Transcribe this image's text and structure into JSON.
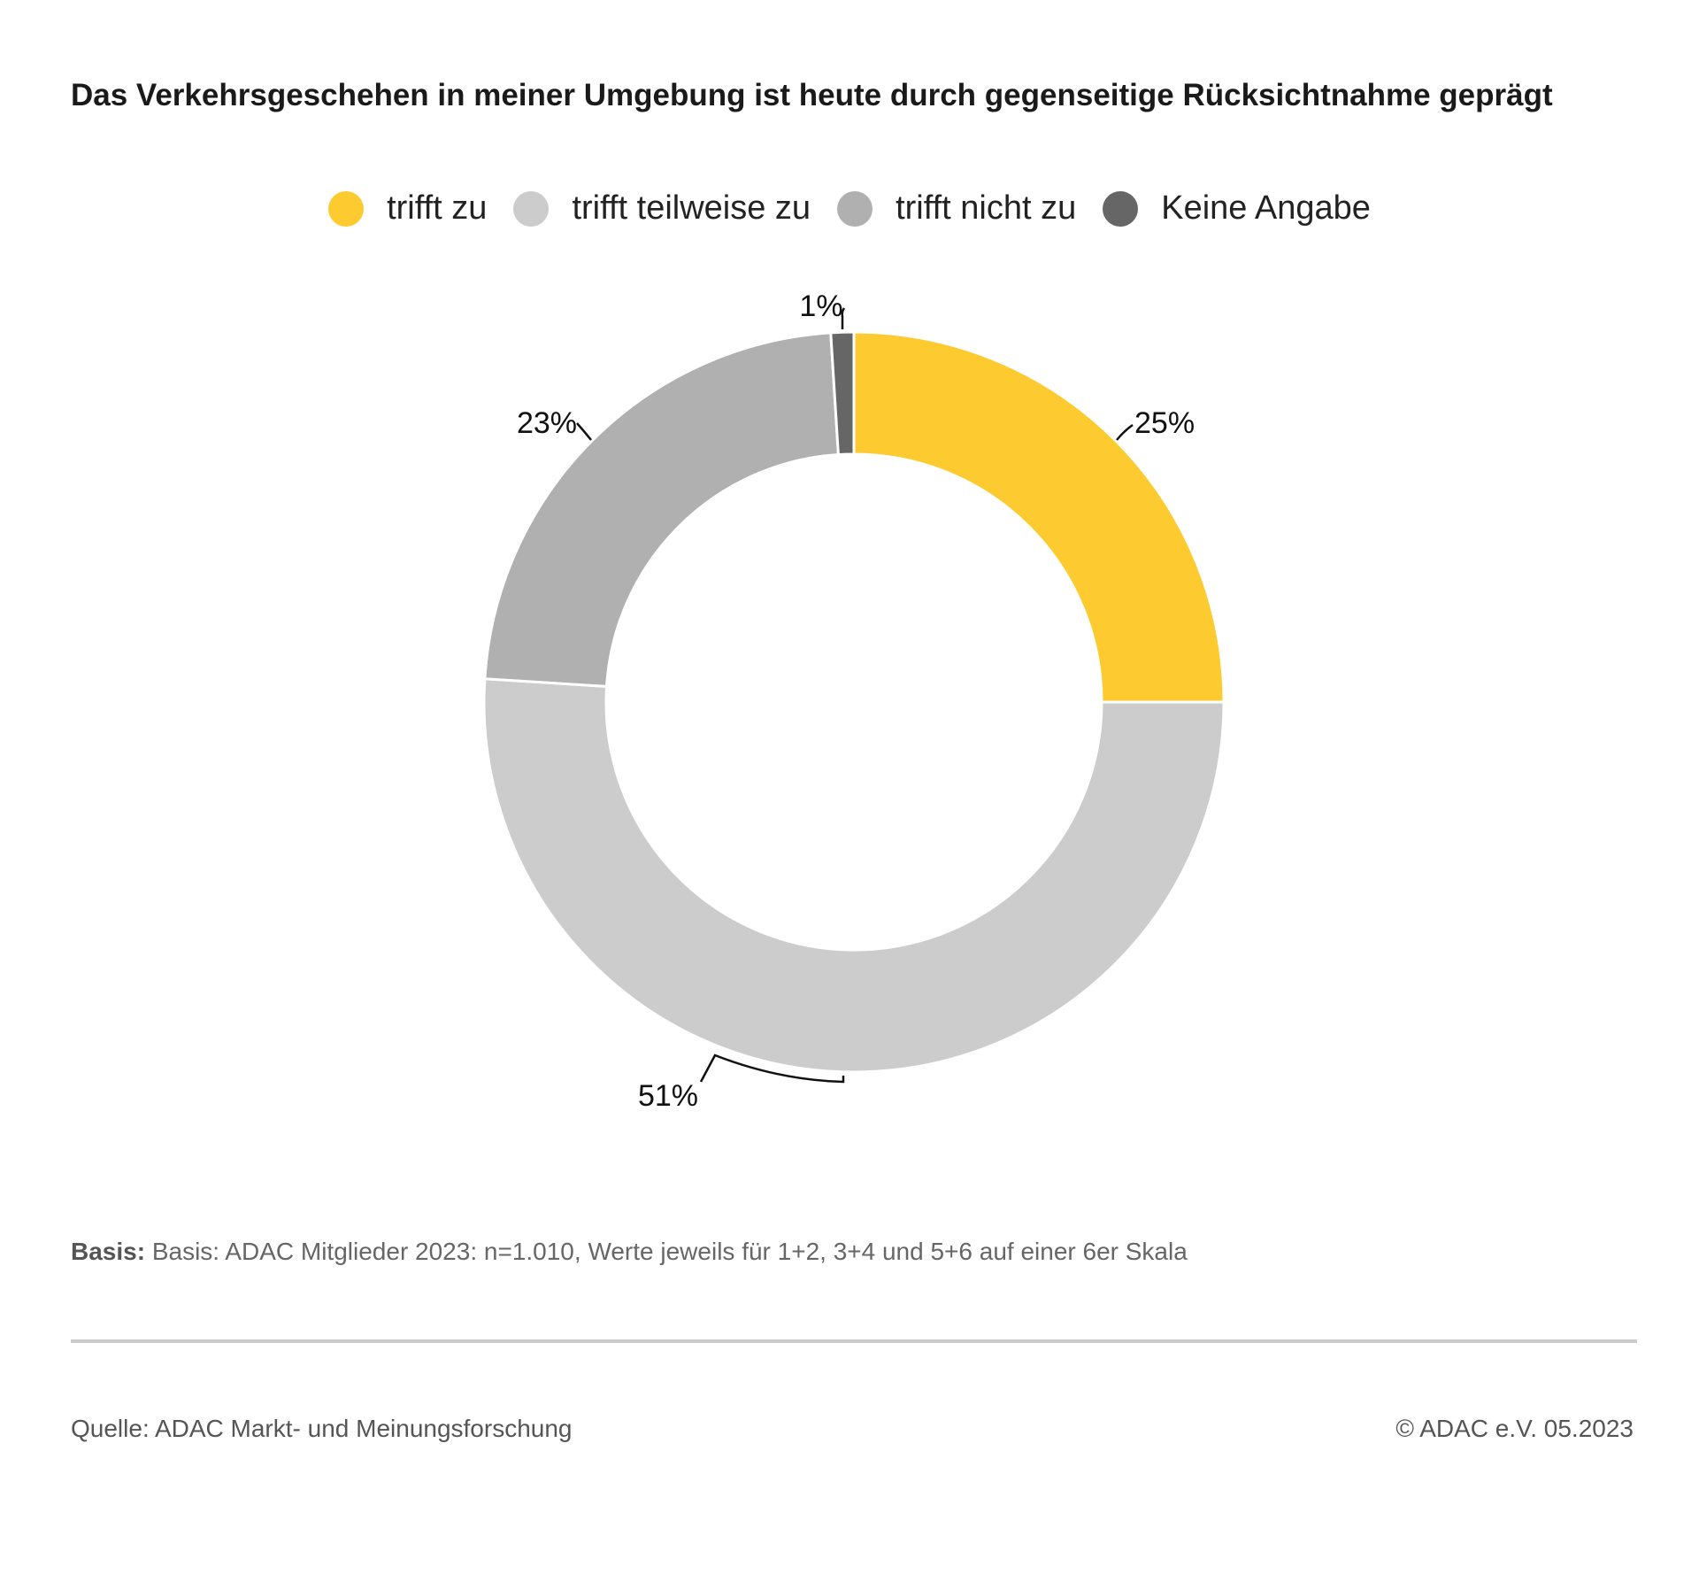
{
  "chart_data": {
    "type": "pie",
    "variant": "donut",
    "title": "Das Verkehrsgeschehen in meiner Umgebung ist heute durch gegenseitige Rücksichtnahme geprägt",
    "legend_position": "top",
    "slices": [
      {
        "name": "trifft zu",
        "value": 25,
        "label": "25%",
        "color": "#fdca30"
      },
      {
        "name": "trifft teilweise zu",
        "value": 51,
        "label": "51%",
        "color": "#cccccc"
      },
      {
        "name": "trifft nicht zu",
        "value": 23,
        "label": "23%",
        "color": "#b0b0b0"
      },
      {
        "name": "Keine Angabe",
        "value": 1,
        "label": "1%",
        "color": "#666666"
      }
    ]
  },
  "basis": {
    "prefix": "Basis:",
    "text": "Basis: ADAC Mitglieder 2023: n=1.010, Werte jeweils für 1+2, 3+4 und 5+6 auf einer 6er Skala"
  },
  "footer": {
    "source": "Quelle: ADAC Markt- und Meinungsforschung",
    "copyright": "© ADAC e.V. 05.2023"
  }
}
